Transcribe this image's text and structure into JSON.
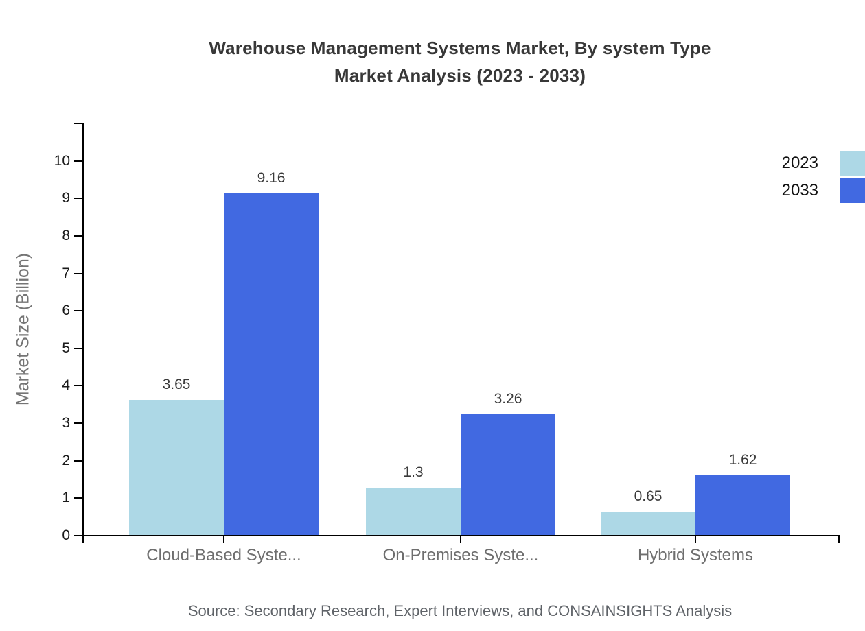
{
  "chart_data": {
    "type": "bar",
    "title_line1": "Warehouse Management Systems Market, By system Type",
    "title_line2": "Market Analysis (2023 - 2033)",
    "ylabel": "Market Size (Billion)",
    "categories": [
      "Cloud-Based Syste...",
      "On-Premises Syste...",
      "Hybrid Systems"
    ],
    "series": [
      {
        "name": "2023",
        "color": "#add8e6",
        "values": [
          3.65,
          1.3,
          0.65
        ]
      },
      {
        "name": "2033",
        "color": "#4169e1",
        "values": [
          9.16,
          3.26,
          1.62
        ]
      }
    ],
    "yticks": [
      0,
      1,
      2,
      3,
      4,
      5,
      6,
      7,
      8,
      9,
      10
    ],
    "ylim": [
      0,
      11
    ],
    "grid": false,
    "legend_position": "top-right",
    "source": "Source: Secondary Research, Expert Interviews, and CONSAINSIGHTS Analysis"
  },
  "colors": {
    "axis": "#000000",
    "title": "#383838",
    "value_label": "#3a3a3a",
    "y_tick_label": "#1a1a1a",
    "category_label": "#6e6e6e",
    "axis_title": "#757575",
    "source": "#5f6368",
    "series_2023": "#add8e6",
    "series_2033": "#4169e1"
  }
}
